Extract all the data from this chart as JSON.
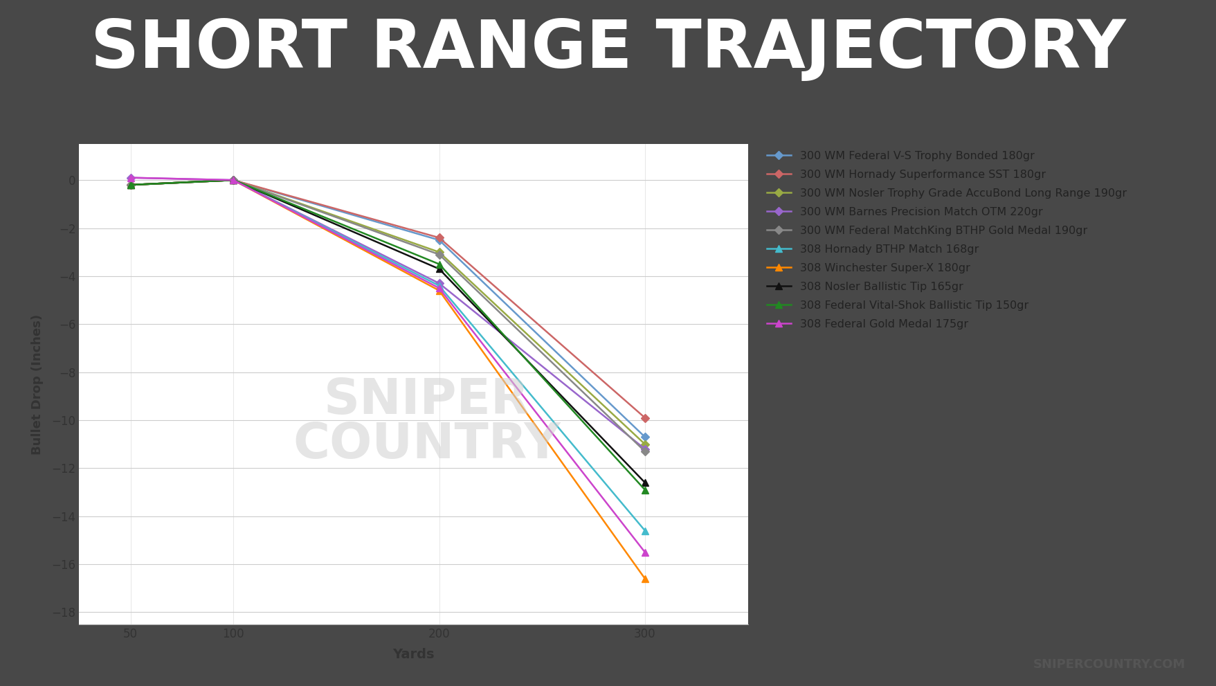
{
  "title": "SHORT RANGE TRAJECTORY",
  "xlabel": "Yards",
  "ylabel": "Bullet Drop (Inches)",
  "xlim": [
    25,
    350
  ],
  "ylim": [
    -18.5,
    1.5
  ],
  "xticks": [
    50,
    100,
    200,
    300
  ],
  "yticks": [
    0,
    -2,
    -4,
    -6,
    -8,
    -10,
    -12,
    -14,
    -16,
    -18
  ],
  "background_outer": "#484848",
  "background_bar": "#e05c5c",
  "background_plot": "#ffffff",
  "watermark_color": "#d0d0d0",
  "series": [
    {
      "label": "300 WM Federal V-S Trophy Bonded 180gr",
      "color": "#6699cc",
      "marker": "D",
      "markersize": 6,
      "data": {
        "50": -0.2,
        "100": 0.0,
        "200": -2.5,
        "300": -10.7
      }
    },
    {
      "label": "300 WM Hornady Superformance SST 180gr",
      "color": "#cc6666",
      "marker": "D",
      "markersize": 6,
      "data": {
        "50": -0.2,
        "100": 0.0,
        "200": -2.4,
        "300": -9.9
      }
    },
    {
      "label": "300 WM Nosler Trophy Grade AccuBond Long Range 190gr",
      "color": "#99aa44",
      "marker": "D",
      "markersize": 6,
      "data": {
        "50": -0.2,
        "100": 0.0,
        "200": -3.0,
        "300": -11.0
      }
    },
    {
      "label": "300 WM Barnes Precision Match OTM 220gr",
      "color": "#9966cc",
      "marker": "D",
      "markersize": 6,
      "data": {
        "50": 0.1,
        "100": 0.0,
        "200": -4.3,
        "300": -11.2
      }
    },
    {
      "label": "300 WM Federal MatchKing BTHP Gold Medal 190gr",
      "color": "#888888",
      "marker": "D",
      "markersize": 6,
      "data": {
        "50": -0.2,
        "100": 0.0,
        "200": -3.1,
        "300": -11.3
      }
    },
    {
      "label": "308 Hornady BTHP Match 168gr",
      "color": "#44bbcc",
      "marker": "^",
      "markersize": 7,
      "data": {
        "50": -0.2,
        "100": 0.0,
        "200": -4.4,
        "300": -14.6
      }
    },
    {
      "label": "308 Winchester Super-X 180gr",
      "color": "#ff8800",
      "marker": "^",
      "markersize": 7,
      "data": {
        "50": -0.2,
        "100": 0.0,
        "200": -4.6,
        "300": -16.6
      }
    },
    {
      "label": "308 Nosler Ballistic Tip 165gr",
      "color": "#111111",
      "marker": "^",
      "markersize": 7,
      "data": {
        "50": -0.2,
        "100": 0.0,
        "200": -3.7,
        "300": -12.6
      }
    },
    {
      "label": "308 Federal Vital-Shok Ballistic Tip 150gr",
      "color": "#228822",
      "marker": "^",
      "markersize": 7,
      "data": {
        "50": -0.2,
        "100": 0.0,
        "200": -3.5,
        "300": -12.9
      }
    },
    {
      "label": "308 Federal Gold Medal 175gr",
      "color": "#cc44cc",
      "marker": "^",
      "markersize": 7,
      "data": {
        "50": 0.1,
        "100": 0.0,
        "200": -4.5,
        "300": -15.5
      }
    }
  ]
}
